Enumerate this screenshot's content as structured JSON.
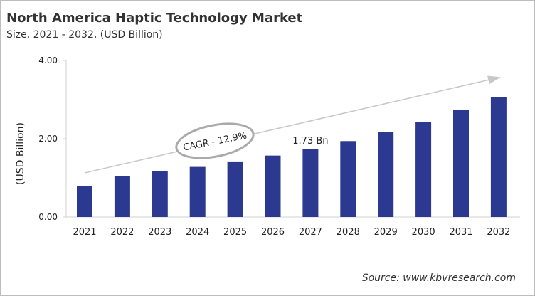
{
  "chart_data": {
    "type": "bar",
    "title": "North America Haptic Technology Market",
    "subtitle": "Size, 2021 - 2032, (USD Billion)",
    "ylabel": "(USD Billion)",
    "xlabel": "",
    "categories": [
      "2021",
      "2022",
      "2023",
      "2024",
      "2025",
      "2026",
      "2027",
      "2028",
      "2029",
      "2030",
      "2031",
      "2032"
    ],
    "values": [
      0.8,
      1.05,
      1.17,
      1.28,
      1.42,
      1.57,
      1.73,
      1.94,
      2.17,
      2.42,
      2.73,
      3.07
    ],
    "ylim": [
      0,
      4
    ],
    "yticks": [
      "0.00",
      "2.00",
      "4.00"
    ],
    "grid": false,
    "bar_color": "#2b3990",
    "annotations": {
      "cagr": "CAGR - 12.9%",
      "data_label": "1.73 Bn",
      "data_label_category": "2027"
    },
    "source": "Source: www.kbvresearch.com"
  }
}
